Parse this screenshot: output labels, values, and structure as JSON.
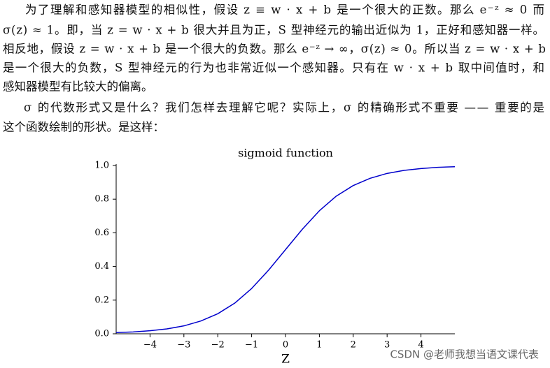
{
  "document": {
    "lines": [
      "为了理解和感知器模型的相似性，假设 z ≡ w · x + b 是一个很大的正数。那么 e⁻ᶻ ≈ 0 而",
      "σ(z) ≈ 1。即，当 z = w · x + b 很大并且为正，S 型神经元的输出近似为 1，正好和感知器一样。",
      "相反地，假设 z = w · x + b 是一个很大的负数。那么 e⁻ᶻ → ∞，σ(z) ≈ 0。所以当 z = w · x + b",
      "是一个很大的负数，S 型神经元的行为也非常近似一个感知器。只有在 w · x + b 取中间值时，和",
      "感知器模型有比较大的偏离。",
      "σ 的代数形式又是什么？我们怎样去理解它呢？实际上，σ 的精确形式不重要 —— 重要的是",
      "这个函数绘制的形状。是这样："
    ],
    "watermark": "CSDN @老师我想当语文课代表"
  },
  "chart_data": {
    "type": "line",
    "title": "sigmoid function",
    "x_label": "Z",
    "color": "#0000cc",
    "x": [
      -5,
      -4.5,
      -4,
      -3.5,
      -3,
      -2.5,
      -2,
      -1.5,
      -1,
      -0.5,
      0,
      0.5,
      1,
      1.5,
      2,
      2.5,
      3,
      3.5,
      4,
      4.5,
      5
    ],
    "values": [
      0.007,
      0.011,
      0.018,
      0.029,
      0.047,
      0.076,
      0.119,
      0.182,
      0.269,
      0.378,
      0.5,
      0.622,
      0.731,
      0.818,
      0.881,
      0.924,
      0.953,
      0.971,
      0.982,
      0.989,
      0.993
    ],
    "xlim": [
      -5,
      5
    ],
    "ylim": [
      0,
      1
    ],
    "xticks": [
      {
        "value": -4,
        "label": "−4"
      },
      {
        "value": -3,
        "label": "−3"
      },
      {
        "value": -2,
        "label": "−2"
      },
      {
        "value": -1,
        "label": "−1"
      },
      0,
      1,
      2,
      3,
      4
    ],
    "yticks": [
      {
        "value": 0,
        "label": "0.0"
      },
      0.2,
      0.4,
      0.6,
      0.8,
      {
        "value": 1,
        "label": "1.0"
      }
    ]
  }
}
